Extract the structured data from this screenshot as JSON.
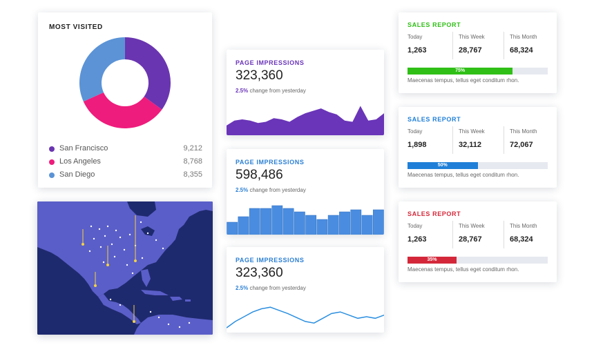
{
  "most_visited": {
    "title": "MOST VISITED",
    "items": [
      {
        "name": "San Francisco",
        "value": "9,212",
        "color": "#6a35b0"
      },
      {
        "name": "Los Angeles",
        "value": "8,768",
        "color": "#ee1c7c"
      },
      {
        "name": "San Diego",
        "value": "8,355",
        "color": "#5b93d6"
      }
    ]
  },
  "impressions": [
    {
      "title": "PAGE IMPRESSIONS",
      "value": "323,360",
      "change_pct": "2.5%",
      "change_text": " change from yesterday",
      "color": "#6a35b8",
      "accent": "#6a35b8",
      "chart_type": "area"
    },
    {
      "title": "PAGE IMPRESSIONS",
      "value": "598,486",
      "change_pct": "2.5%",
      "change_text": " change from yesterday",
      "color": "#4a8de0",
      "accent": "#2b7fd3",
      "chart_type": "bars"
    },
    {
      "title": "PAGE IMPRESSIONS",
      "value": "323,360",
      "change_pct": "2.5%",
      "change_text": " change from yesterday",
      "color": "#2b8fe0",
      "accent": "#2b7fd3",
      "chart_type": "line"
    }
  ],
  "sales": [
    {
      "title": "SALES REPORT",
      "color": "#2fbf16",
      "cols": [
        {
          "label": "Today",
          "value": "1,263"
        },
        {
          "label": "This Week",
          "value": "28,767"
        },
        {
          "label": "This Month",
          "value": "68,324"
        }
      ],
      "progress": 0.75,
      "progress_label": "75%",
      "note": "Maecenas tempus, tellus eget conditum rhon."
    },
    {
      "title": "SALES REPORT",
      "color": "#1f7fd8",
      "cols": [
        {
          "label": "Today",
          "value": "1,898"
        },
        {
          "label": "This Week",
          "value": "32,112"
        },
        {
          "label": "This Month",
          "value": "72,067"
        }
      ],
      "progress": 0.5,
      "progress_label": "50%",
      "note": "Maecenas tempus, tellus eget conditum rhon."
    },
    {
      "title": "SALES REPORT",
      "color": "#d4283a",
      "cols": [
        {
          "label": "Today",
          "value": "1,263"
        },
        {
          "label": "This Week",
          "value": "28,767"
        },
        {
          "label": "This Month",
          "value": "68,324"
        }
      ],
      "progress": 0.35,
      "progress_label": "35%",
      "note": "Maecenas tempus, tellus eget conditum rhon."
    }
  ],
  "chart_data": [
    {
      "type": "pie",
      "labels": [
        "San Francisco",
        "Los Angeles",
        "San Diego"
      ],
      "values": [
        9212,
        8768,
        8355
      ],
      "colors": [
        "#6a35b0",
        "#ee1c7c",
        "#5b93d6"
      ]
    },
    {
      "type": "area",
      "values": [
        8,
        12,
        13,
        12,
        10,
        11,
        14,
        13,
        11,
        15,
        18,
        20,
        22,
        19,
        17,
        12,
        11,
        24,
        12,
        13,
        18
      ]
    },
    {
      "type": "bar",
      "values": [
        18,
        26,
        38,
        38,
        42,
        38,
        33,
        28,
        22,
        28,
        33,
        36,
        28,
        36
      ]
    },
    {
      "type": "line",
      "values": [
        6,
        14,
        20,
        26,
        30,
        32,
        28,
        24,
        19,
        14,
        12,
        18,
        24,
        26,
        22,
        18,
        20,
        18,
        22
      ]
    }
  ],
  "map": {
    "ocean_color": "#1e2a6e",
    "land_color": "#5a5ec8",
    "marker_color": "#f5d340"
  }
}
